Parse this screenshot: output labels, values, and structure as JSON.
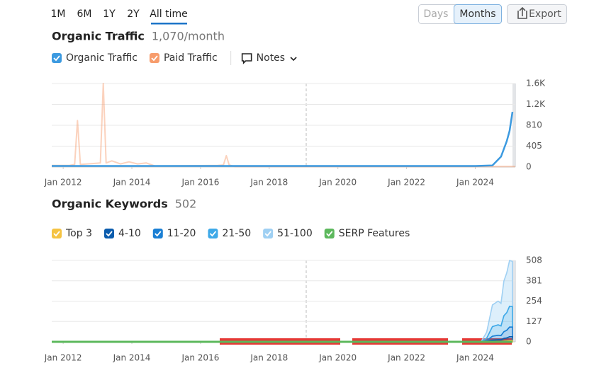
{
  "toolbar": {
    "periods": [
      "1M",
      "6M",
      "1Y",
      "2Y",
      "All time"
    ],
    "granularity": [
      "Days",
      "Months"
    ],
    "export_label": "Export"
  },
  "chart_data": [
    {
      "type": "line",
      "title": "Organic Traffic",
      "subtitle": "1,070/month",
      "notes_label": "Notes",
      "xlim": [
        "2011-09",
        "2025-03"
      ],
      "xticks": [
        {
          "value": "2012-01",
          "label": "Jan 2012"
        },
        {
          "value": "2014-01",
          "label": "Jan 2014"
        },
        {
          "value": "2016-01",
          "label": "Jan 2016"
        },
        {
          "value": "2018-01",
          "label": "Jan 2018"
        },
        {
          "value": "2020-01",
          "label": "Jan 2020"
        },
        {
          "value": "2022-01",
          "label": "Jan 2022"
        },
        {
          "value": "2024-01",
          "label": "Jan 2024"
        }
      ],
      "ylim": [
        0,
        1620
      ],
      "yticks": [
        0,
        405,
        810,
        {
          "value": 1215,
          "label": "1.2K"
        },
        {
          "value": 1620,
          "label": "1.6K"
        }
      ],
      "grid": true,
      "series": [
        {
          "name": "Organic Traffic",
          "color": "#3c9ae0",
          "x": [
            "2011-09",
            "2024-01",
            "2024-07",
            "2024-10",
            "2024-12",
            "2025-01",
            "2025-02"
          ],
          "values": [
            20,
            20,
            30,
            200,
            500,
            700,
            1070
          ]
        },
        {
          "name": "Paid Traffic",
          "color": "#f79c6c",
          "x": [
            "2011-09",
            "2012-03",
            "2012-05",
            "2012-06",
            "2012-07",
            "2013-02",
            "2013-03",
            "2013-04",
            "2013-06",
            "2013-09",
            "2013-12",
            "2014-03",
            "2014-06",
            "2014-09",
            "2016-07",
            "2016-09",
            "2016-10",
            "2016-11",
            "2017-01",
            "2025-03"
          ],
          "values": [
            30,
            30,
            50,
            900,
            50,
            80,
            1620,
            80,
            120,
            60,
            100,
            60,
            80,
            20,
            30,
            40,
            220,
            40,
            10,
            10
          ]
        }
      ]
    },
    {
      "type": "area",
      "stacked": true,
      "title": "Organic Keywords",
      "subtitle": "502",
      "xlim": [
        "2011-09",
        "2025-03"
      ],
      "xticks": [
        {
          "value": "2012-01",
          "label": "Jan 2012"
        },
        {
          "value": "2014-01",
          "label": "Jan 2014"
        },
        {
          "value": "2016-01",
          "label": "Jan 2016"
        },
        {
          "value": "2018-01",
          "label": "Jan 2018"
        },
        {
          "value": "2020-01",
          "label": "Jan 2020"
        },
        {
          "value": "2022-01",
          "label": "Jan 2022"
        },
        {
          "value": "2024-01",
          "label": "Jan 2024"
        }
      ],
      "ylim": [
        0,
        508
      ],
      "yticks": [
        0,
        127,
        254,
        381,
        508
      ],
      "grid": true,
      "x": [
        "2011-09",
        "2024-03",
        "2024-05",
        "2024-07",
        "2024-09",
        "2024-10",
        "2024-11",
        "2024-12",
        "2025-01",
        "2025-02"
      ],
      "series": [
        {
          "name": "Top 3",
          "color": "#f5c342",
          "values": [
            0,
            0,
            0,
            2,
            3,
            3,
            5,
            6,
            8,
            8
          ]
        },
        {
          "name": "4-10",
          "color": "#0b5cad",
          "values": [
            0,
            0,
            2,
            8,
            10,
            10,
            16,
            18,
            24,
            24
          ]
        },
        {
          "name": "11-20",
          "color": "#1a7fd4",
          "values": [
            0,
            0,
            5,
            25,
            28,
            26,
            42,
            48,
            60,
            60
          ]
        },
        {
          "name": "21-50",
          "color": "#3ea9e8",
          "values": [
            0,
            0,
            15,
            60,
            65,
            60,
            100,
            110,
            130,
            128
          ]
        },
        {
          "name": "51-100",
          "color": "#9fd0f3",
          "values": [
            0,
            0,
            38,
            135,
            148,
            141,
            217,
            248,
            286,
            282
          ]
        },
        {
          "name": "SERP Features",
          "color": "#5cb85c",
          "type": "line",
          "values": [
            0,
            0,
            0,
            0,
            0,
            0,
            0,
            0,
            0,
            0
          ]
        }
      ]
    }
  ]
}
